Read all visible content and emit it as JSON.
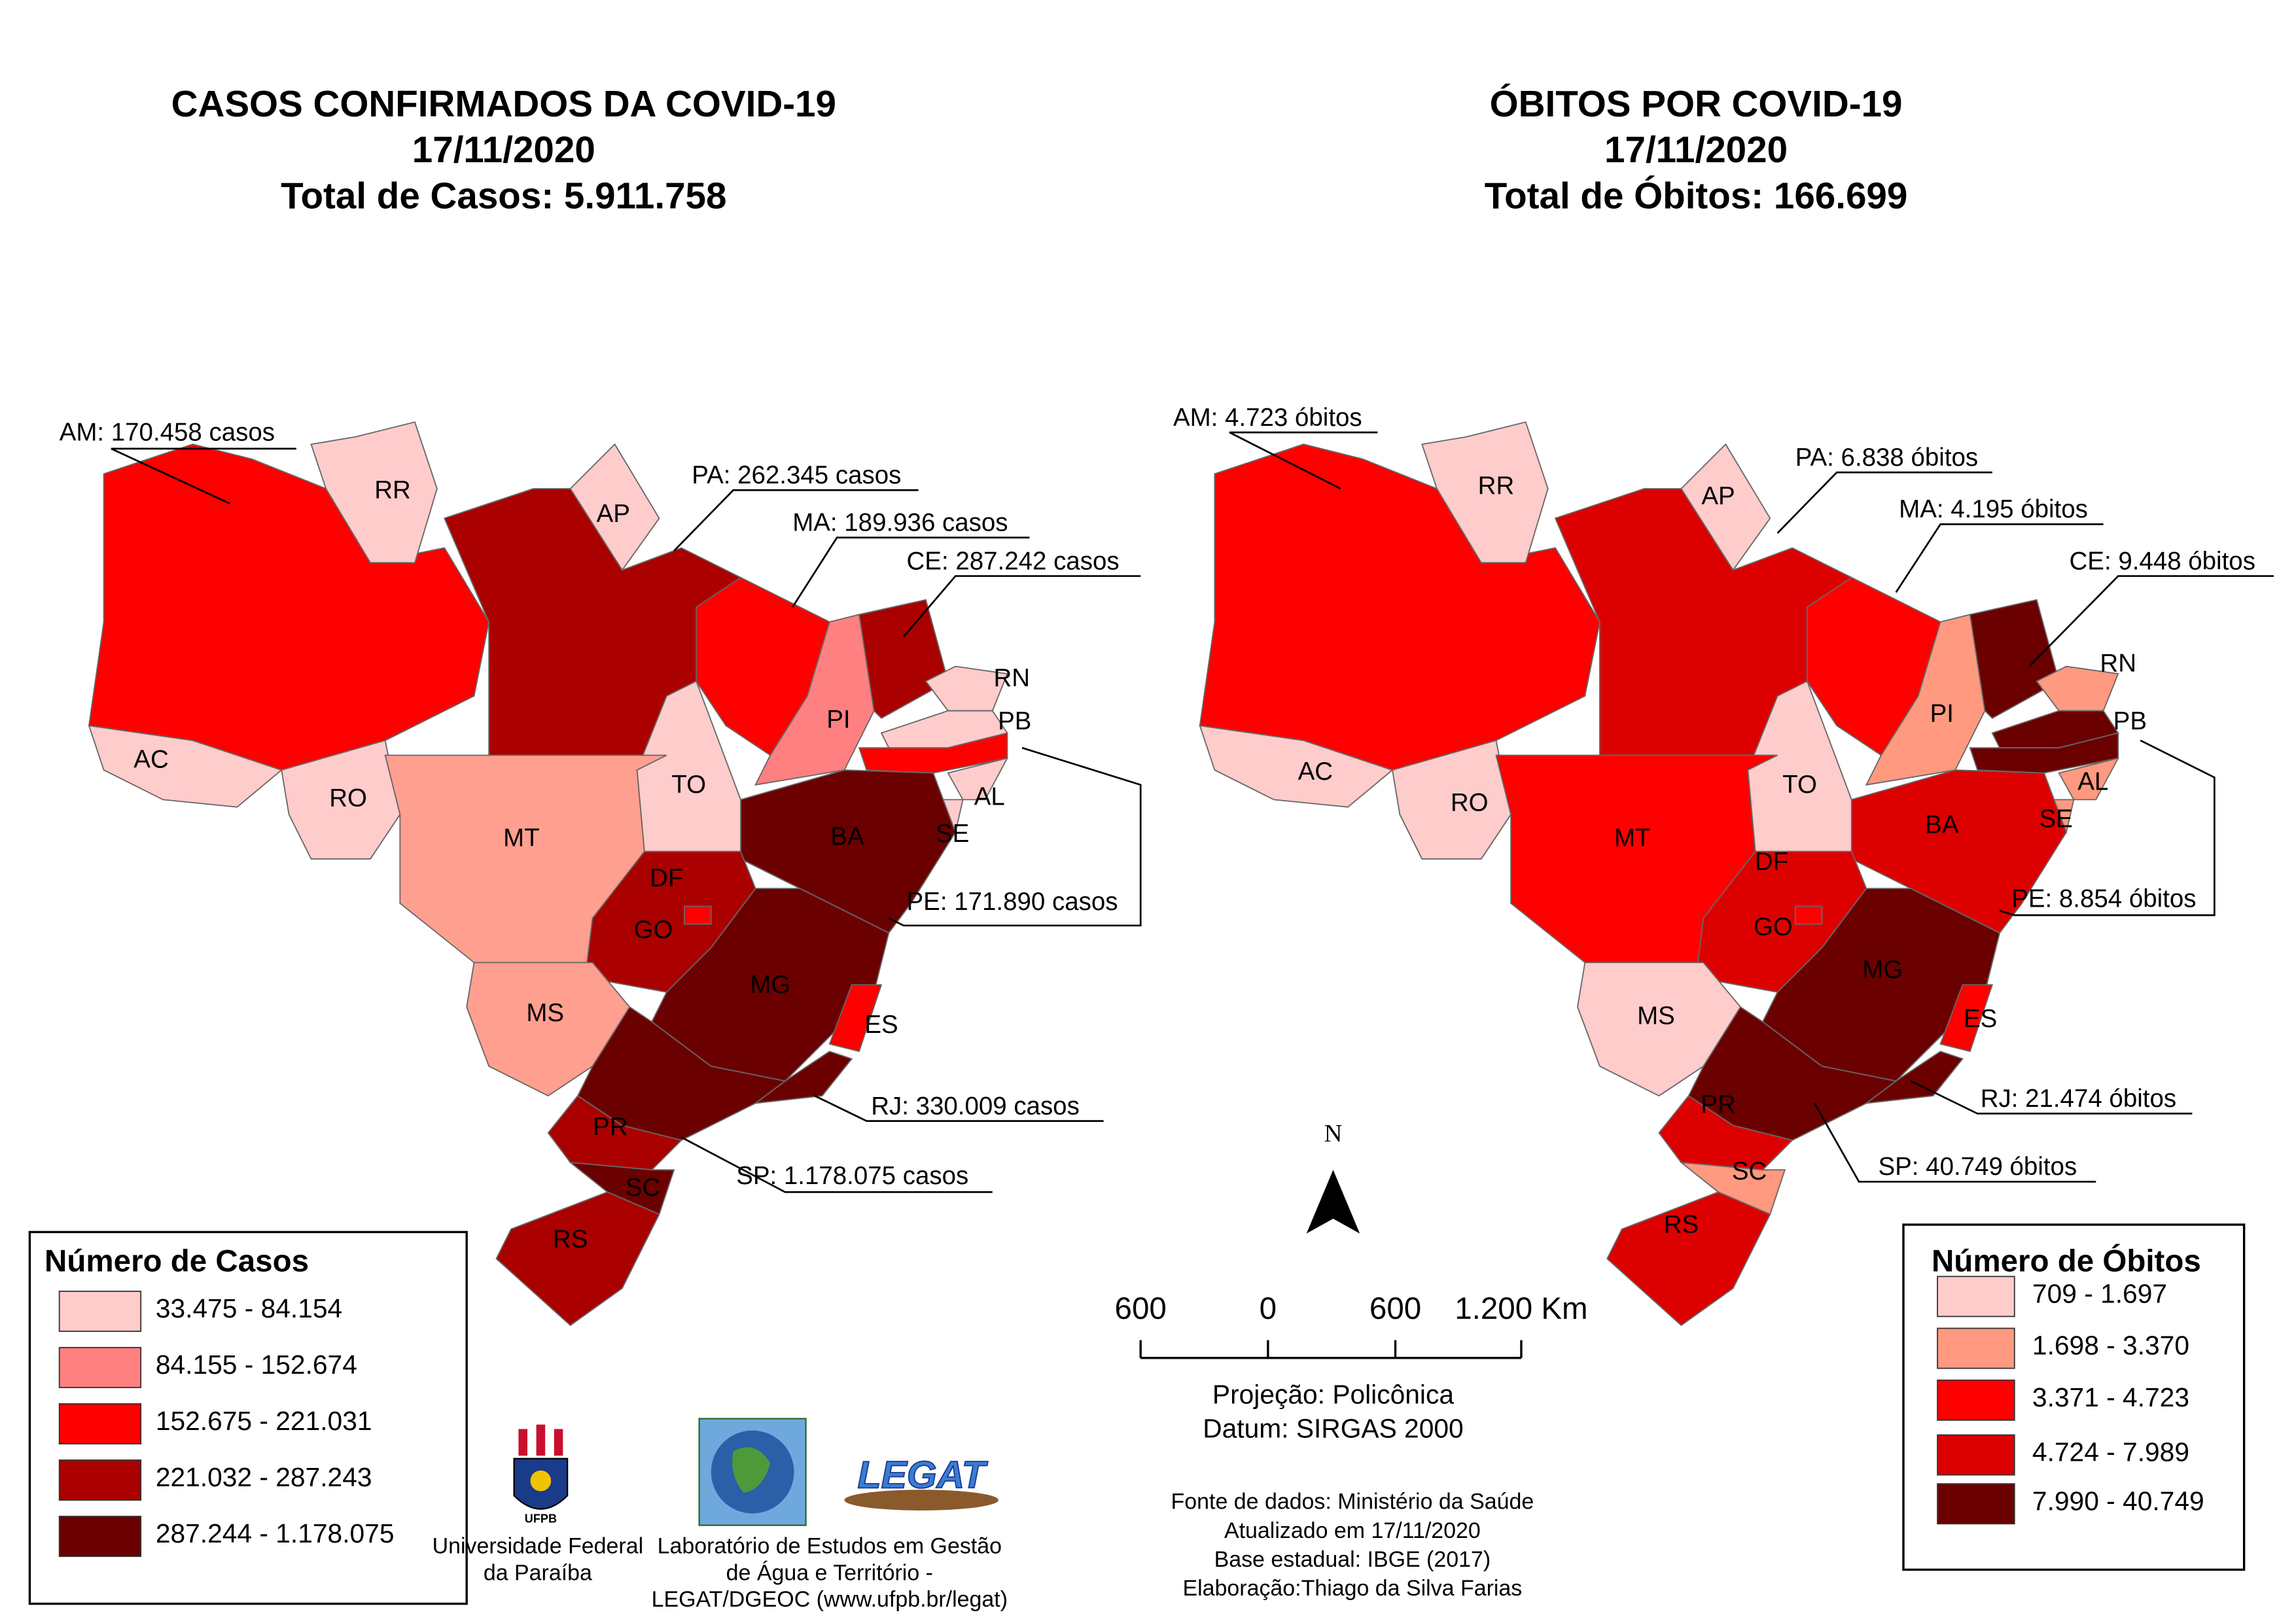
{
  "maps": [
    {
      "title": "CASOS CONFIRMADOS DA COVID-19",
      "date": "17/11/2020",
      "total": "Total de Casos: 5.911.758",
      "legend_title": "Número de Casos",
      "legend": [
        {
          "label": "33.475 - 84.154",
          "color": "#ffcccc"
        },
        {
          "label": "84.155 - 152.674",
          "color": "#ff8080"
        },
        {
          "label": "152.675 - 221.031",
          "color": "#ff0000"
        },
        {
          "label": "221.032 - 287.243",
          "color": "#aa0000"
        },
        {
          "label": "287.244 - 1.178.075",
          "color": "#6b0000"
        }
      ],
      "states": [
        {
          "label": "AC",
          "color": "#ffcccc"
        },
        {
          "color": "#ff0000"
        },
        {
          "label": "RR",
          "color": "#ffcccc"
        },
        {
          "label": "AP",
          "color": "#ffcccc"
        },
        {
          "color": "#aa0000"
        },
        {
          "color": "#ff0000"
        },
        {
          "label": "PI",
          "color": "#ff8080"
        },
        {
          "color": "#aa0000"
        },
        {
          "label": "RN",
          "color": "#ffcccc"
        },
        {
          "label": "PB",
          "color": "#ffcccc"
        },
        {
          "color": "#ff0000"
        },
        {
          "label": "AL",
          "color": "#ffcccc"
        },
        {
          "label": "SE",
          "color": "#ffcccc"
        },
        {
          "label": "BA",
          "color": "#6b0000"
        },
        {
          "label": "TO",
          "color": "#ffcccc"
        },
        {
          "label": "RO",
          "color": "#ffcccc"
        },
        {
          "label": "MT",
          "color": "#ff9f8f"
        },
        {
          "label": "GO",
          "color": "#aa0000"
        },
        {
          "label": "DF",
          "color": "#ff0000"
        },
        {
          "label": "MS",
          "color": "#ff9f8f"
        },
        {
          "label": "MG",
          "color": "#6b0000"
        },
        {
          "label": "ES",
          "color": "#ff0000"
        },
        {
          "color": "#6b0000"
        },
        {
          "color": "#6b0000"
        },
        {
          "label": "PR",
          "color": "#aa0000"
        },
        {
          "label": "SC",
          "color": "#6b0000"
        },
        {
          "label": "RS",
          "color": "#aa0000"
        }
      ],
      "annotations": [
        "AM: 170.458 casos",
        "PA: 262.345 casos",
        "MA: 189.936 casos",
        "CE: 287.242 casos",
        "PE: 171.890 casos",
        "RJ: 330.009 casos",
        "SP: 1.178.075 casos"
      ]
    },
    {
      "title": "ÓBITOS POR COVID-19",
      "date": "17/11/2020",
      "total": "Total de Óbitos: 166.699",
      "legend_title": "Número de Óbitos",
      "legend": [
        {
          "label": "709 - 1.697",
          "color": "#ffcccc"
        },
        {
          "label": "1.698 - 3.370",
          "color": "#ff9980"
        },
        {
          "label": "3.371 - 4.723",
          "color": "#ff0000"
        },
        {
          "label": "4.724 - 7.989",
          "color": "#dd0000"
        },
        {
          "label": "7.990 - 40.749",
          "color": "#6b0000"
        }
      ],
      "states": [
        {
          "label": "AC",
          "color": "#ffcccc"
        },
        {
          "color": "#ff0000"
        },
        {
          "label": "RR",
          "color": "#ffcccc"
        },
        {
          "label": "AP",
          "color": "#ffcccc"
        },
        {
          "color": "#dd0000"
        },
        {
          "color": "#ff0000"
        },
        {
          "label": "PI",
          "color": "#ff9980"
        },
        {
          "color": "#6b0000"
        },
        {
          "label": "RN",
          "color": "#ff9980"
        },
        {
          "label": "PB",
          "color": "#6b0000"
        },
        {
          "color": "#6b0000"
        },
        {
          "label": "AL",
          "color": "#ff9980"
        },
        {
          "label": "SE",
          "color": "#ff9980"
        },
        {
          "label": "BA",
          "color": "#dd0000"
        },
        {
          "label": "TO",
          "color": "#ffcccc"
        },
        {
          "label": "RO",
          "color": "#ffcccc"
        },
        {
          "label": "MT",
          "color": "#ff0000"
        },
        {
          "label": "GO",
          "color": "#dd0000"
        },
        {
          "label": "DF",
          "color": "#ff0000"
        },
        {
          "label": "MS",
          "color": "#ffcccc"
        },
        {
          "label": "MG",
          "color": "#6b0000"
        },
        {
          "label": "ES",
          "color": "#ff0000"
        },
        {
          "color": "#6b0000"
        },
        {
          "color": "#6b0000"
        },
        {
          "label": "PR",
          "color": "#dd0000"
        },
        {
          "label": "SC",
          "color": "#ff9980"
        },
        {
          "label": "RS",
          "color": "#dd0000"
        }
      ],
      "annotations": [
        "AM: 4.723 óbitos",
        "PA: 6.838 óbitos",
        "MA: 4.195 óbitos",
        "CE: 9.448 óbitos",
        "PE: 8.854 óbitos",
        "RJ: 21.474 óbitos",
        "SP: 40.749 óbitos"
      ]
    }
  ],
  "north": "N",
  "scale": [
    "600",
    "0",
    "600",
    "1.200 Km"
  ],
  "projection": [
    "Projeção: Policônica",
    "Datum: SIRGAS 2000"
  ],
  "sources": [
    "Fonte de dados: Ministério da Saúde",
    "Atualizado em 17/11/2020",
    "Base estadual: IBGE (2017)",
    "Elaboração:Thiago da Silva Farias"
  ],
  "ufpb": {
    "logo": "UFPB",
    "caption": [
      "Universidade Federal",
      "da Paraíba"
    ]
  },
  "legat": {
    "logo": "LEGAT",
    "caption": [
      "Laboratório de Estudos em Gestão",
      "de Água e Território -",
      "LEGAT/DGEOC (www.ufpb.br/legat)"
    ]
  }
}
